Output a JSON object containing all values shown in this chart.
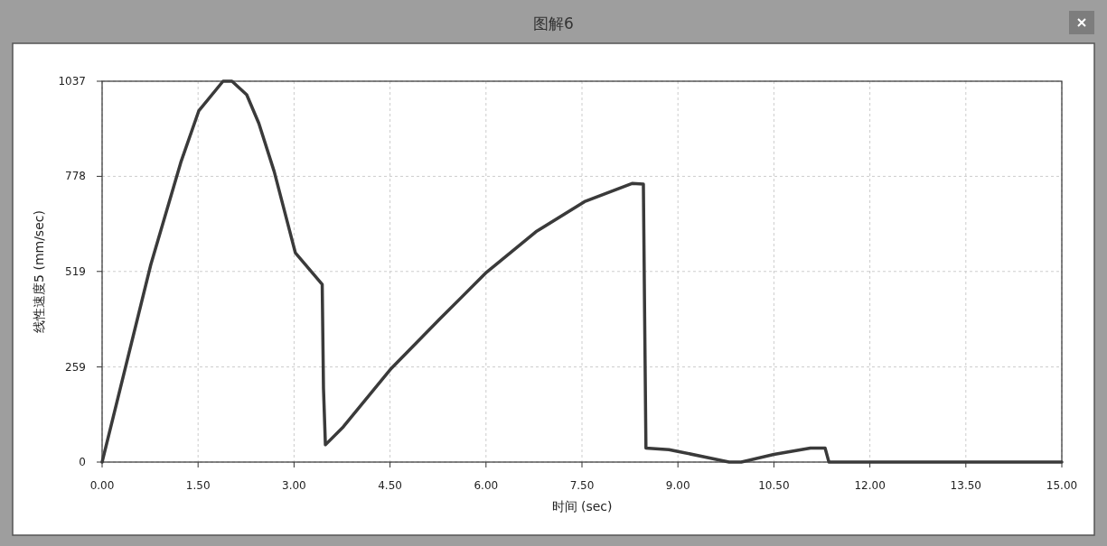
{
  "chart_data": {
    "type": "line",
    "title": "图解6",
    "xlabel": "时间 (sec)",
    "ylabel": "线性速度5 (mm/sec)",
    "xlim": [
      0,
      15
    ],
    "xticks": [
      {
        "value": 0,
        "label": "0.00"
      },
      {
        "value": 1.5,
        "label": "1.50"
      },
      {
        "value": 3,
        "label": "3.00"
      },
      {
        "value": 4.5,
        "label": "4.50"
      },
      {
        "value": 6,
        "label": "6.00"
      },
      {
        "value": 7.5,
        "label": "7.50"
      },
      {
        "value": 9,
        "label": "9.00"
      },
      {
        "value": 10.5,
        "label": "10.50"
      },
      {
        "value": 12,
        "label": "12.00"
      },
      {
        "value": 13.5,
        "label": "13.50"
      },
      {
        "value": 15,
        "label": "15.00"
      }
    ],
    "ylim": [
      0,
      1037
    ],
    "yticks": [
      0,
      259,
      519,
      778,
      1037
    ],
    "grid": true,
    "marker": "none",
    "line_style": "solid",
    "series": [
      {
        "color": "#3a3a3a",
        "x": [
          0,
          0.76,
          1.23,
          1.51,
          1.89,
          2.03,
          2.26,
          2.45,
          2.69,
          3.02,
          3.44,
          3.46,
          3.49,
          3.77,
          4.52,
          5.28,
          6.01,
          6.78,
          7.54,
          8.29,
          8.46,
          8.48,
          8.5,
          8.86,
          9.0,
          9.8,
          9.99,
          10.5,
          11.07,
          11.3,
          11.36,
          15
        ],
        "values": [
          0,
          537,
          816,
          956,
          1037,
          1037,
          1000,
          922,
          791,
          570,
          484,
          201,
          47,
          96,
          255,
          390,
          517,
          627,
          709,
          759,
          757,
          390,
          38,
          34,
          29,
          0,
          0,
          21,
          38,
          38,
          0,
          0
        ]
      }
    ]
  }
}
